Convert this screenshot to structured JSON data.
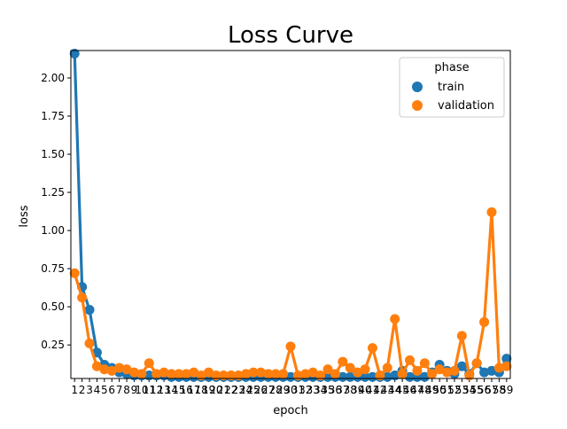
{
  "chart_data": {
    "type": "line",
    "title": "Loss Curve",
    "xlabel": "epoch",
    "ylabel": "loss",
    "categories": [
      "1",
      "2",
      "3",
      "4",
      "5",
      "6",
      "7",
      "8",
      "9",
      "10",
      "11",
      "12",
      "13",
      "14",
      "15",
      "16",
      "17",
      "18",
      "19",
      "20",
      "21",
      "22",
      "23",
      "24",
      "25",
      "26",
      "27",
      "28",
      "29",
      "30",
      "31",
      "32",
      "33",
      "34",
      "35",
      "36",
      "37",
      "38",
      "39",
      "40",
      "41",
      "42",
      "43",
      "44",
      "45",
      "46",
      "47",
      "48",
      "49",
      "50",
      "51",
      "52",
      "53",
      "54",
      "55",
      "56",
      "57",
      "58",
      "59"
    ],
    "ylim": [
      0.03,
      2.18
    ],
    "yticks": [
      "0.25",
      "0.50",
      "0.75",
      "1.00",
      "1.25",
      "1.50",
      "1.75",
      "2.00"
    ],
    "grid": false,
    "legend": {
      "title": "phase",
      "position": "top-right"
    },
    "series": [
      {
        "name": "train",
        "color": "#1f77b4",
        "values": [
          2.16,
          0.63,
          0.48,
          0.2,
          0.12,
          0.1,
          0.07,
          0.06,
          0.05,
          0.05,
          0.05,
          0.05,
          0.05,
          0.04,
          0.04,
          0.04,
          0.04,
          0.04,
          0.04,
          0.04,
          0.04,
          0.04,
          0.04,
          0.04,
          0.04,
          0.04,
          0.04,
          0.04,
          0.04,
          0.04,
          0.04,
          0.04,
          0.04,
          0.04,
          0.04,
          0.04,
          0.04,
          0.04,
          0.04,
          0.04,
          0.04,
          0.04,
          0.04,
          0.05,
          0.08,
          0.04,
          0.04,
          0.04,
          0.07,
          0.12,
          0.08,
          0.06,
          0.11,
          0.06,
          0.13,
          0.07,
          0.08,
          0.07,
          0.16
        ]
      },
      {
        "name": "validation",
        "color": "#ff7f0e",
        "values": [
          0.72,
          0.56,
          0.26,
          0.11,
          0.09,
          0.08,
          0.1,
          0.09,
          0.07,
          0.06,
          0.13,
          0.06,
          0.07,
          0.06,
          0.06,
          0.06,
          0.07,
          0.05,
          0.07,
          0.05,
          0.05,
          0.05,
          0.05,
          0.06,
          0.07,
          0.07,
          0.06,
          0.06,
          0.06,
          0.24,
          0.05,
          0.06,
          0.07,
          0.05,
          0.09,
          0.06,
          0.14,
          0.1,
          0.07,
          0.09,
          0.23,
          0.05,
          0.1,
          0.42,
          0.06,
          0.15,
          0.08,
          0.13,
          0.06,
          0.09,
          0.07,
          0.08,
          0.31,
          0.05,
          0.13,
          0.4,
          1.12,
          0.1,
          0.11
        ]
      }
    ]
  }
}
